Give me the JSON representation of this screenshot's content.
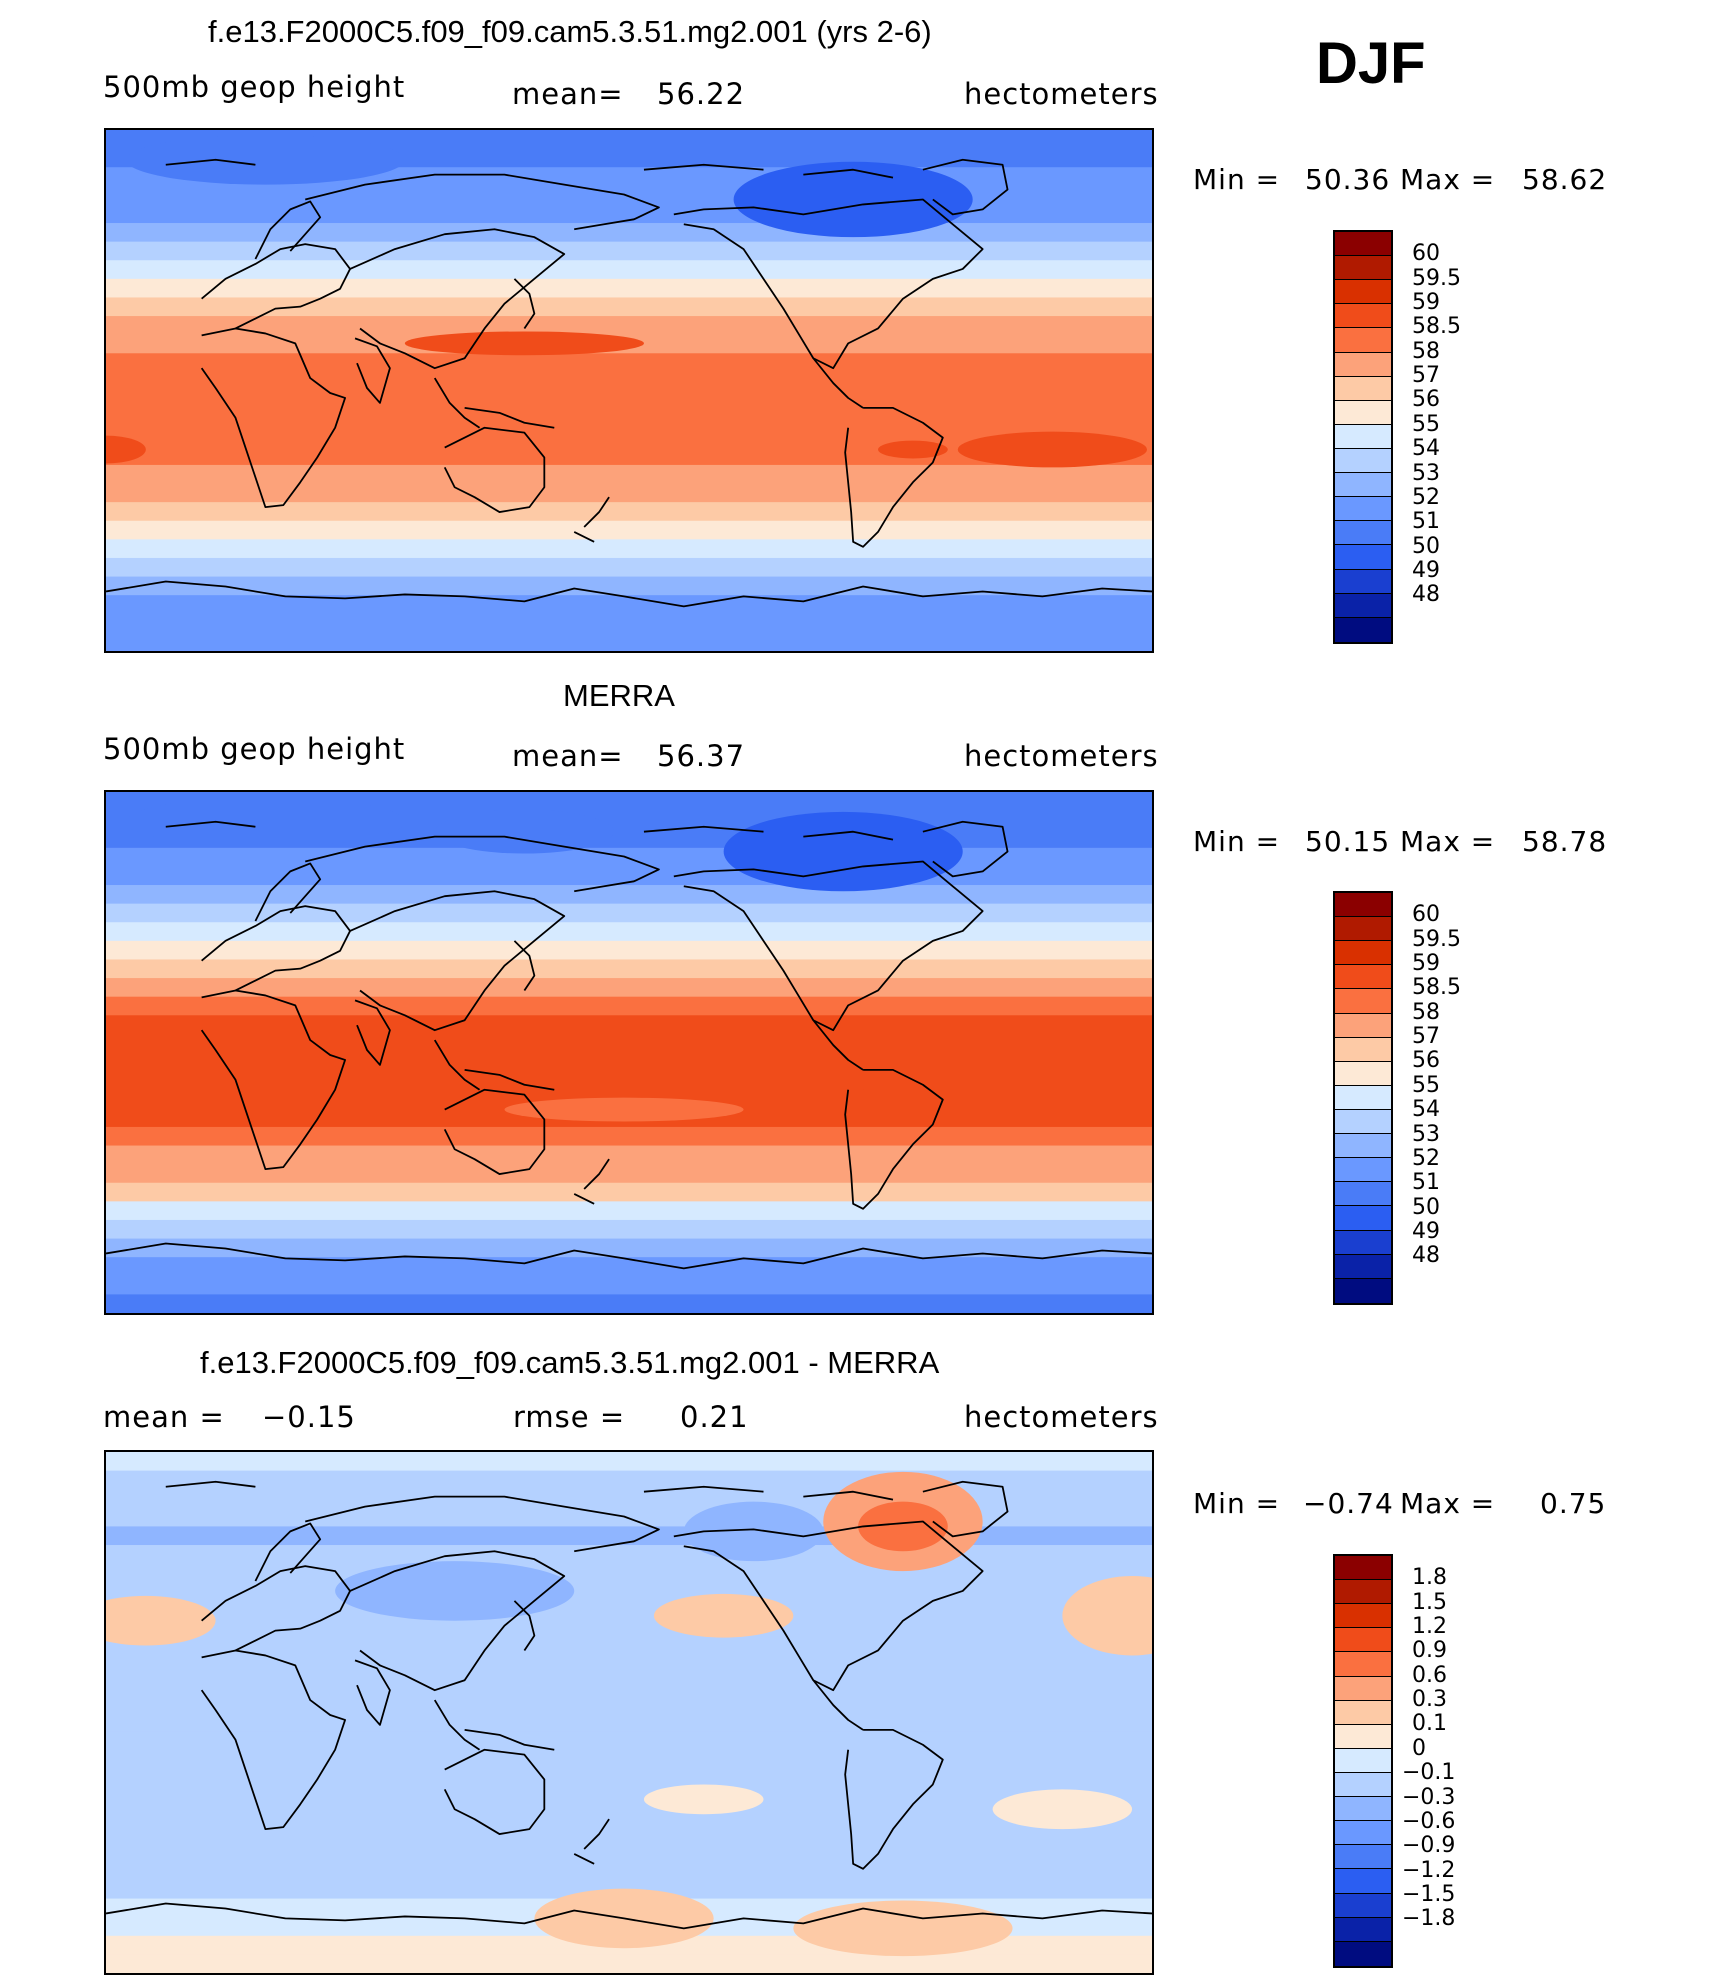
{
  "season": "DJF",
  "colorbars": {
    "abs": {
      "colors": [
        "#8b0000",
        "#b01a00",
        "#d93000",
        "#f04c1a",
        "#fa7040",
        "#fca27a",
        "#fdcaa6",
        "#fde9d6",
        "#d6eaff",
        "#b4d1ff",
        "#8fb5ff",
        "#6a98ff",
        "#4a7cf7",
        "#2b5ef2",
        "#1a3fd0",
        "#0a22a8",
        "#000c80"
      ],
      "labels": [
        "60",
        "59.5",
        "59",
        "58.5",
        "58",
        "57",
        "56",
        "55",
        "54",
        "53",
        "52",
        "51",
        "50",
        "49",
        "48"
      ]
    },
    "diff": {
      "colors": [
        "#8b0000",
        "#b01a00",
        "#d93000",
        "#f04c1a",
        "#fa7040",
        "#fca27a",
        "#fdcaa6",
        "#fde9d6",
        "#d6eaff",
        "#b4d1ff",
        "#8fb5ff",
        "#6a98ff",
        "#4a7cf7",
        "#2b5ef2",
        "#1a3fd0",
        "#0a22a8",
        "#000c80"
      ],
      "labels": [
        "1.8",
        "1.5",
        "1.2",
        "0.9",
        "0.6",
        "0.3",
        "0.1",
        "0",
        "−0.1",
        "−0.3",
        "−0.6",
        "−0.9",
        "−1.2",
        "−1.5",
        "−1.8"
      ]
    }
  },
  "chart_data": [
    {
      "type": "heatmap",
      "title": "f.e13.F2000C5.f09_f09.cam5.3.51.mg2.001 (yrs 2-6)",
      "variable": "500mb geop height",
      "mean_label": "mean=",
      "mean": "56.22",
      "units": "hectometers",
      "min_label": "Min =",
      "min": "50.36",
      "max_label": "Max =",
      "max": "58.62",
      "latitude_profile": [
        50.6,
        50.8,
        51.0,
        51.3,
        51.8,
        52.4,
        53.1,
        54.0,
        55.0,
        56.0,
        57.0,
        57.8,
        58.0,
        58.1,
        58.2,
        58.2,
        58.1,
        58.0,
        57.9,
        57.4,
        56.6,
        55.6,
        54.5,
        53.4,
        52.5,
        51.8,
        51.3,
        51.0
      ]
    },
    {
      "type": "heatmap",
      "title": "MERRA",
      "variable": "500mb geop height",
      "mean_label": "mean=",
      "mean": "56.37",
      "units": "hectometers",
      "min_label": "Min =",
      "min": "50.15",
      "max_label": "Max =",
      "max": "58.78",
      "latitude_profile": [
        50.3,
        50.6,
        50.9,
        51.2,
        51.8,
        52.4,
        53.2,
        54.1,
        55.2,
        56.3,
        57.3,
        58.2,
        58.6,
        58.7,
        58.7,
        58.6,
        58.6,
        58.5,
        58.3,
        57.8,
        57.0,
        56.0,
        54.7,
        53.5,
        52.4,
        51.6,
        51.0,
        50.7
      ]
    },
    {
      "type": "heatmap",
      "title": "f.e13.F2000C5.f09_f09.cam5.3.51.mg2.001 - MERRA",
      "mean_label": "mean =",
      "mean": "−0.15",
      "rmse_label": "rmse =",
      "rmse": "0.21",
      "units": "hectometers",
      "min_label": "Min =",
      "min": "−0.74",
      "max_label": "Max =",
      "max": "0.75",
      "latitude_profile": [
        -0.05,
        -0.12,
        -0.25,
        -0.3,
        -0.35,
        -0.3,
        -0.2,
        -0.15,
        -0.12,
        -0.15,
        -0.2,
        -0.2,
        -0.2,
        -0.15,
        -0.15,
        -0.15,
        -0.15,
        -0.15,
        -0.15,
        -0.15,
        -0.15,
        -0.15,
        -0.15,
        -0.15,
        -0.1,
        -0.05,
        0.05,
        0.0
      ]
    }
  ]
}
